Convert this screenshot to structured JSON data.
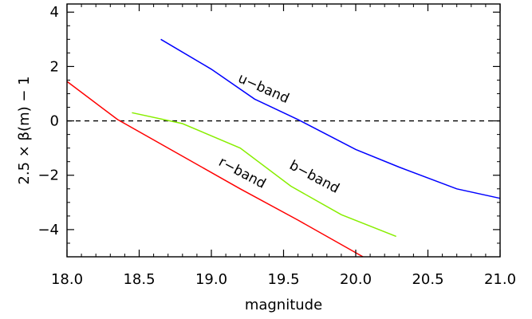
{
  "chart_data": {
    "type": "line",
    "xlabel": "magnitude",
    "ylabel": "2.5 × β(m) − 1",
    "xlim": [
      18.0,
      21.0
    ],
    "ylim": [
      -5,
      4.3
    ],
    "x_ticks": [
      "18.0",
      "18.5",
      "19.0",
      "19.5",
      "20.0",
      "20.5",
      "21.0"
    ],
    "x_tick_values": [
      18.0,
      18.5,
      19.0,
      19.5,
      20.0,
      20.5,
      21.0
    ],
    "y_ticks": [
      "4",
      "2",
      "0",
      "−2",
      "−4"
    ],
    "y_tick_values": [
      4,
      2,
      0,
      -2,
      -4
    ],
    "reference_line": {
      "y": 0,
      "style": "dashed"
    },
    "series": [
      {
        "name": "u−band",
        "color": "#0000ff",
        "x": [
          18.65,
          19.0,
          19.3,
          19.6,
          20.0,
          20.3,
          20.7,
          21.0
        ],
        "y": [
          3.0,
          1.9,
          0.8,
          0.05,
          -1.05,
          -1.7,
          -2.5,
          -2.85
        ]
      },
      {
        "name": "b−band",
        "color": "#88ee00",
        "x": [
          18.45,
          18.8,
          19.2,
          19.55,
          19.9,
          20.28
        ],
        "y": [
          0.3,
          -0.1,
          -1.0,
          -2.4,
          -3.45,
          -4.25
        ]
      },
      {
        "name": "r−band",
        "color": "#ff0000",
        "x": [
          18.0,
          18.35,
          18.8,
          19.2,
          19.6,
          20.05
        ],
        "y": [
          1.45,
          0.05,
          -1.3,
          -2.5,
          -3.65,
          -5.0
        ]
      }
    ]
  }
}
